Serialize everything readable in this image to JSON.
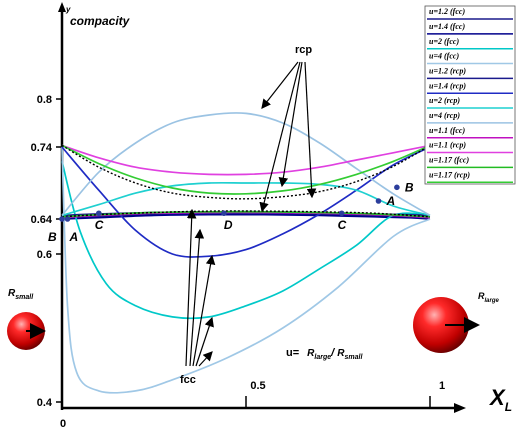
{
  "chart_data": {
    "type": "line",
    "ylabel": "compacity",
    "ylabel_small": "y",
    "xlabel": "X",
    "xlabel_sub": "L",
    "origin_label": "0",
    "x_ticks": [
      {
        "value": 0.5,
        "label": "0.5"
      },
      {
        "value": 1,
        "label": "1"
      }
    ],
    "y_ticks": [
      {
        "value": 0.4,
        "label": "0.4"
      },
      {
        "value": 0.6,
        "label": "0.6"
      },
      {
        "value": 0.64,
        "label": "0.64"
      },
      {
        "value": 0.74,
        "label": "0.74"
      },
      {
        "value": 0.8,
        "label": "0.8"
      }
    ],
    "series": [
      {
        "name": "u=1.2 (fcc)",
        "color": "#1a1a8c",
        "dash": false,
        "points": [
          [
            0,
            0.642
          ],
          [
            0.1,
            0.644
          ],
          [
            0.25,
            0.646
          ],
          [
            0.4,
            0.647
          ],
          [
            0.55,
            0.647
          ],
          [
            0.7,
            0.646
          ],
          [
            0.85,
            0.645
          ],
          [
            1,
            0.64
          ]
        ]
      },
      {
        "name": "u=1.4 (fcc)",
        "color": "#00008b",
        "dash": false,
        "points": [
          [
            0,
            0.64
          ],
          [
            0.1,
            0.642
          ],
          [
            0.25,
            0.645
          ],
          [
            0.4,
            0.646
          ],
          [
            0.55,
            0.646
          ],
          [
            0.7,
            0.645
          ],
          [
            0.85,
            0.643
          ],
          [
            1,
            0.641
          ]
        ]
      },
      {
        "name": "u=2 (fcc)",
        "color": "#00c8c8",
        "dash": false,
        "points": [
          [
            0,
            0.72
          ],
          [
            0.05,
            0.625
          ],
          [
            0.12,
            0.56
          ],
          [
            0.2,
            0.53
          ],
          [
            0.3,
            0.515
          ],
          [
            0.4,
            0.515
          ],
          [
            0.5,
            0.53
          ],
          [
            0.6,
            0.55
          ],
          [
            0.7,
            0.58
          ],
          [
            0.8,
            0.61
          ],
          [
            0.9,
            0.645
          ],
          [
            1,
            0.645
          ]
        ]
      },
      {
        "name": "u=4 (fcc)",
        "color": "#a0c8e6",
        "dash": false,
        "points": [
          [
            0,
            0.74
          ],
          [
            0.015,
            0.53
          ],
          [
            0.04,
            0.44
          ],
          [
            0.1,
            0.415
          ],
          [
            0.2,
            0.415
          ],
          [
            0.3,
            0.43
          ],
          [
            0.45,
            0.46
          ],
          [
            0.6,
            0.5
          ],
          [
            0.75,
            0.555
          ],
          [
            0.9,
            0.62
          ],
          [
            1,
            0.64
          ]
        ]
      },
      {
        "name": "u=1.2 (rcp)",
        "color": "#1a1a8c",
        "dash": false,
        "points": [
          [
            0,
            0.645
          ],
          [
            0.1,
            0.647
          ],
          [
            0.25,
            0.649
          ],
          [
            0.4,
            0.65
          ],
          [
            0.55,
            0.65
          ],
          [
            0.7,
            0.649
          ],
          [
            0.85,
            0.647
          ],
          [
            1,
            0.645
          ]
        ]
      },
      {
        "name": "u=1.4 (rcp)",
        "color": "#1f2bc4",
        "dash": false,
        "points": [
          [
            0,
            0.74
          ],
          [
            0.1,
            0.68
          ],
          [
            0.2,
            0.627
          ],
          [
            0.3,
            0.6
          ],
          [
            0.4,
            0.597
          ],
          [
            0.5,
            0.605
          ],
          [
            0.6,
            0.623
          ],
          [
            0.7,
            0.647
          ],
          [
            0.8,
            0.68
          ],
          [
            0.9,
            0.715
          ],
          [
            1,
            0.74
          ]
        ]
      },
      {
        "name": "u=2 (rcp)",
        "color": "#1fd0d0",
        "dash": false,
        "points": [
          [
            0,
            0.645
          ],
          [
            0.1,
            0.66
          ],
          [
            0.2,
            0.676
          ],
          [
            0.3,
            0.686
          ],
          [
            0.4,
            0.69
          ],
          [
            0.5,
            0.69
          ],
          [
            0.6,
            0.69
          ],
          [
            0.7,
            0.688
          ],
          [
            0.8,
            0.68
          ],
          [
            0.9,
            0.658
          ],
          [
            1,
            0.645
          ]
        ]
      },
      {
        "name": "u=4 (rcp)",
        "color": "#9bc3e3",
        "dash": false,
        "points": [
          [
            0,
            0.645
          ],
          [
            0.1,
            0.705
          ],
          [
            0.2,
            0.745
          ],
          [
            0.3,
            0.77
          ],
          [
            0.4,
            0.78
          ],
          [
            0.5,
            0.782
          ],
          [
            0.6,
            0.77
          ],
          [
            0.7,
            0.745
          ],
          [
            0.8,
            0.71
          ],
          [
            0.9,
            0.675
          ],
          [
            1,
            0.645
          ]
        ]
      },
      {
        "name": "u=1.1 (fcc)",
        "color": "#c010c0",
        "dash": false,
        "points": [
          [
            0,
            0.642
          ],
          [
            0.1,
            0.645
          ],
          [
            0.25,
            0.648
          ],
          [
            0.4,
            0.649
          ],
          [
            0.55,
            0.649
          ],
          [
            0.7,
            0.648
          ],
          [
            0.85,
            0.646
          ],
          [
            1,
            0.642
          ]
        ]
      },
      {
        "name": "u=1.1 (rcp)",
        "color": "#e040e0",
        "dash": false,
        "points": [
          [
            0,
            0.742
          ],
          [
            0.1,
            0.725
          ],
          [
            0.2,
            0.712
          ],
          [
            0.3,
            0.705
          ],
          [
            0.4,
            0.702
          ],
          [
            0.5,
            0.702
          ],
          [
            0.6,
            0.705
          ],
          [
            0.7,
            0.712
          ],
          [
            0.8,
            0.722
          ],
          [
            0.9,
            0.732
          ],
          [
            1,
            0.742
          ]
        ]
      },
      {
        "name": "u=1.17 (fcc)",
        "color": "#22bb22",
        "dash": false,
        "points": [
          [
            0,
            0.643
          ],
          [
            0.1,
            0.646
          ],
          [
            0.25,
            0.649
          ],
          [
            0.4,
            0.65
          ],
          [
            0.55,
            0.65
          ],
          [
            0.7,
            0.649
          ],
          [
            0.85,
            0.647
          ],
          [
            1,
            0.643
          ]
        ]
      },
      {
        "name": "u=1.17 (rcp)",
        "color": "#33cc33",
        "dash": false,
        "points": [
          [
            0,
            0.742
          ],
          [
            0.1,
            0.717
          ],
          [
            0.2,
            0.697
          ],
          [
            0.3,
            0.683
          ],
          [
            0.4,
            0.676
          ],
          [
            0.5,
            0.675
          ],
          [
            0.6,
            0.679
          ],
          [
            0.7,
            0.688
          ],
          [
            0.8,
            0.702
          ],
          [
            0.9,
            0.72
          ],
          [
            1,
            0.742
          ]
        ]
      },
      {
        "name": "",
        "color": "#000000",
        "dash": true,
        "points": [
          [
            0,
            0.742
          ],
          [
            0.1,
            0.712
          ],
          [
            0.2,
            0.69
          ],
          [
            0.3,
            0.676
          ],
          [
            0.4,
            0.67
          ],
          [
            0.5,
            0.668
          ],
          [
            0.6,
            0.671
          ],
          [
            0.7,
            0.678
          ],
          [
            0.8,
            0.692
          ],
          [
            0.9,
            0.713
          ],
          [
            1,
            0.742
          ]
        ]
      },
      {
        "name": "",
        "color": "#000000",
        "dash": true,
        "points": [
          [
            0,
            0.643
          ],
          [
            0.1,
            0.646
          ],
          [
            0.25,
            0.649
          ],
          [
            0.4,
            0.651
          ],
          [
            0.55,
            0.651
          ],
          [
            0.7,
            0.65
          ],
          [
            0.85,
            0.648
          ],
          [
            1,
            0.643
          ]
        ]
      }
    ],
    "points": [
      {
        "label": "A",
        "x": 0.015,
        "y": 0.64
      },
      {
        "label": "B",
        "x": 0.0,
        "y": 0.64
      },
      {
        "label": "C",
        "x": 0.1,
        "y": 0.648
      },
      {
        "label": "D",
        "x": 0.44,
        "y": 0.648
      },
      {
        "label": "C",
        "x": 0.76,
        "y": 0.648
      },
      {
        "label": "A",
        "x": 0.86,
        "y": 0.665
      },
      {
        "label": "B",
        "x": 0.91,
        "y": 0.684
      }
    ],
    "annotations": {
      "rcp": "rcp",
      "fcc": "fcc",
      "formula_prefix": "u=",
      "formula_num": "R",
      "formula_num_sub": "large",
      "formula_div": "/ ",
      "formula_den": "R",
      "formula_den_sub": "small",
      "r_small": "R",
      "r_small_sub": "small",
      "r_large": "R",
      "r_large_sub": "large"
    }
  },
  "legend_layout": "right-top"
}
